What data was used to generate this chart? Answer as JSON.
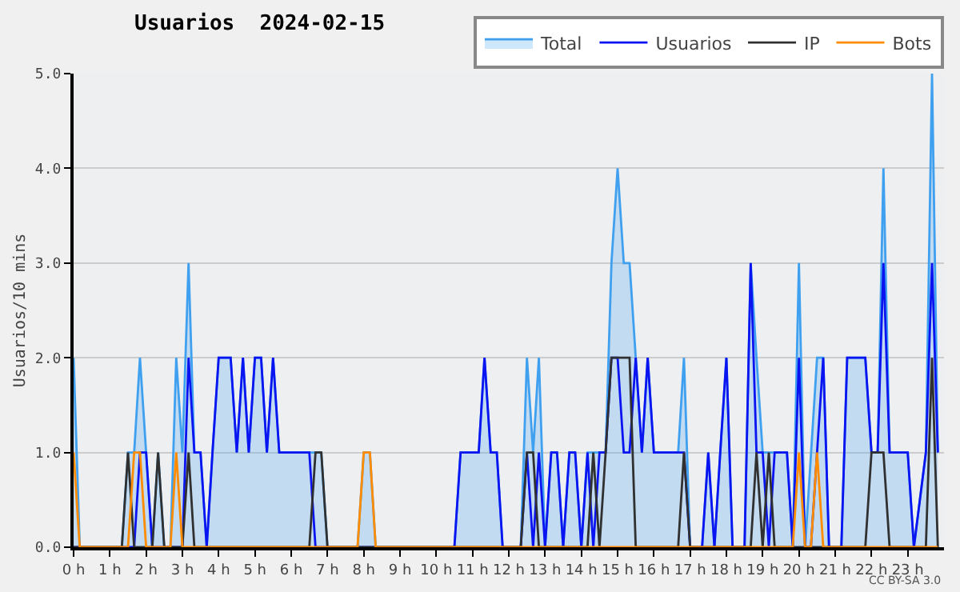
{
  "chart_data": {
    "type": "line",
    "title": "Usuarios  2024-02-15",
    "ylabel": "Usuarios/10 mins",
    "xlim": [
      0,
      24
    ],
    "ylim": [
      0,
      5
    ],
    "xticks": [
      {
        "value": 0,
        "label": "0 h"
      },
      {
        "value": 1,
        "label": "1 h"
      },
      {
        "value": 2,
        "label": "2 h"
      },
      {
        "value": 3,
        "label": "3 h"
      },
      {
        "value": 4,
        "label": "4 h"
      },
      {
        "value": 5,
        "label": "5 h"
      },
      {
        "value": 6,
        "label": "6 h"
      },
      {
        "value": 7,
        "label": "7 h"
      },
      {
        "value": 8,
        "label": "8 h"
      },
      {
        "value": 9,
        "label": "9 h"
      },
      {
        "value": 10,
        "label": "10 h"
      },
      {
        "value": 11,
        "label": "11 h"
      },
      {
        "value": 12,
        "label": "12 h"
      },
      {
        "value": 13,
        "label": "13 h"
      },
      {
        "value": 14,
        "label": "14 h"
      },
      {
        "value": 15,
        "label": "15 h"
      },
      {
        "value": 16,
        "label": "16 h"
      },
      {
        "value": 17,
        "label": "17 h"
      },
      {
        "value": 18,
        "label": "18 h"
      },
      {
        "value": 19,
        "label": "19 h"
      },
      {
        "value": 20,
        "label": "20 h"
      },
      {
        "value": 21,
        "label": "21 h"
      },
      {
        "value": 22,
        "label": "22 h"
      },
      {
        "value": 23,
        "label": "23 h"
      }
    ],
    "yticks": [
      {
        "value": 0,
        "label": "0.0"
      },
      {
        "value": 1,
        "label": "1.0"
      },
      {
        "value": 2,
        "label": "2.0"
      },
      {
        "value": 3,
        "label": "3.0"
      },
      {
        "value": 4,
        "label": "4.0"
      },
      {
        "value": 5,
        "label": "5.0"
      }
    ],
    "grid": "y",
    "legend": "top right",
    "marker": "none",
    "line_style": "solid",
    "annotations": [
      "CC BY-SA 3.0"
    ],
    "series": [
      {
        "name": "Total",
        "type": "area",
        "color": "#3fa0f0",
        "x": [
          0,
          0.17,
          1.33,
          1.5,
          1.67,
          1.83,
          2,
          2.17,
          2.33,
          2.5,
          2.67,
          2.83,
          3,
          3.17,
          3.33,
          3.5,
          3.67,
          3.83,
          4,
          4.33,
          4.5,
          4.67,
          4.83,
          5,
          5.17,
          5.33,
          5.5,
          5.67,
          6.83,
          7,
          7.83,
          8,
          8.17,
          8.33,
          10.5,
          10.67,
          11.17,
          11.33,
          11.5,
          11.67,
          11.83,
          12.33,
          12.5,
          12.67,
          12.83,
          13,
          13.17,
          13.33,
          13.5,
          13.67,
          13.83,
          14,
          14.17,
          14.67,
          14.83,
          15,
          15.17,
          15.33,
          15.5,
          15.67,
          15.83,
          16,
          16.67,
          16.83,
          17,
          17.33,
          17.5,
          17.67,
          17.83,
          18,
          18.17,
          18.5,
          18.67,
          18.83,
          19,
          19.17,
          19.33,
          19.67,
          19.83,
          20,
          20.17,
          20.5,
          20.67,
          20.83,
          21.17,
          21.33,
          21.83,
          22,
          22.17,
          22.33,
          22.5,
          23,
          23.17,
          23.5,
          23.67,
          23.83
        ],
        "values": [
          2,
          0,
          0,
          1,
          1,
          2,
          1,
          0,
          1,
          0,
          0,
          2,
          1,
          3,
          1,
          1,
          0,
          1,
          2,
          2,
          1,
          2,
          1,
          2,
          2,
          1,
          2,
          1,
          1,
          0,
          0,
          1,
          1,
          0,
          0,
          1,
          1,
          2,
          1,
          1,
          0,
          0,
          2,
          1,
          2,
          0,
          1,
          1,
          0,
          1,
          1,
          0,
          1,
          1,
          3,
          4,
          3,
          3,
          2,
          1,
          2,
          1,
          1,
          2,
          0,
          0,
          1,
          0,
          1,
          2,
          0,
          0,
          3,
          2,
          1,
          1,
          1,
          1,
          0,
          3,
          0,
          2,
          2,
          0,
          0,
          2,
          2,
          1,
          1,
          4,
          1,
          1,
          0,
          1,
          5,
          1
        ]
      },
      {
        "name": "Usuarios",
        "color": "#0a14f0",
        "x": [
          0,
          1.67,
          1.83,
          2,
          2.17,
          3,
          3.17,
          3.33,
          3.5,
          3.67,
          3.83,
          4,
          4.33,
          4.5,
          4.67,
          4.83,
          5,
          5.17,
          5.33,
          5.5,
          5.67,
          6.5,
          6.67,
          10.5,
          10.67,
          11.17,
          11.33,
          11.5,
          11.67,
          11.83,
          12.33,
          12.5,
          12.67,
          12.83,
          13,
          13.17,
          13.33,
          13.5,
          13.67,
          13.83,
          14,
          14.17,
          14.33,
          14.5,
          14.67,
          14.83,
          15,
          15.17,
          15.33,
          15.5,
          15.67,
          15.83,
          16,
          16.83,
          17,
          17.33,
          17.5,
          17.67,
          17.83,
          18,
          18.17,
          18.5,
          18.67,
          18.83,
          19,
          19.17,
          19.33,
          19.67,
          19.83,
          20,
          20.17,
          20.33,
          20.5,
          20.67,
          20.83,
          21.17,
          21.33,
          21.83,
          22,
          22.17,
          22.33,
          22.5,
          23,
          23.17,
          23.5,
          23.67,
          23.83
        ],
        "values": [
          0,
          0,
          1,
          1,
          0,
          0,
          2,
          1,
          1,
          0,
          1,
          2,
          2,
          1,
          2,
          1,
          2,
          2,
          1,
          2,
          1,
          1,
          0,
          0,
          1,
          1,
          2,
          1,
          1,
          0,
          0,
          1,
          0,
          1,
          0,
          1,
          1,
          0,
          1,
          1,
          0,
          1,
          0,
          1,
          1,
          2,
          2,
          1,
          1,
          2,
          1,
          2,
          1,
          1,
          0,
          0,
          1,
          0,
          1,
          2,
          0,
          0,
          3,
          1,
          1,
          0,
          1,
          1,
          0,
          2,
          0,
          0,
          1,
          2,
          0,
          0,
          2,
          2,
          1,
          1,
          3,
          1,
          1,
          0,
          1,
          3,
          1
        ]
      },
      {
        "name": "IP",
        "color": "#303030",
        "x": [
          0,
          1.33,
          1.5,
          1.67,
          2.17,
          2.33,
          2.5,
          3,
          3.17,
          3.33,
          6.5,
          6.67,
          6.83,
          7,
          12.33,
          12.5,
          12.67,
          12.83,
          14.17,
          14.33,
          14.5,
          14.67,
          14.83,
          15.33,
          15.5,
          16.67,
          16.83,
          17,
          18.67,
          18.83,
          19,
          19.17,
          19.33,
          21.83,
          22,
          22.33,
          22.5,
          23.5,
          23.67,
          23.83
        ],
        "values": [
          0,
          0,
          1,
          0,
          0,
          1,
          0,
          0,
          1,
          0,
          0,
          1,
          1,
          0,
          0,
          1,
          1,
          0,
          0,
          1,
          0,
          1,
          2,
          2,
          0,
          0,
          1,
          0,
          0,
          1,
          0,
          1,
          0,
          0,
          1,
          1,
          0,
          0,
          2,
          0
        ]
      },
      {
        "name": "Bots",
        "color": "#ff8c00",
        "x": [
          0,
          0.17,
          1.5,
          1.67,
          1.83,
          2,
          2.67,
          2.83,
          3,
          7.83,
          8,
          8.17,
          8.33,
          19.83,
          20,
          20.17,
          20.33,
          20.5,
          20.67,
          23.83
        ],
        "values": [
          1,
          0,
          0,
          1,
          1,
          0,
          0,
          1,
          0,
          0,
          1,
          1,
          0,
          0,
          1,
          0,
          0,
          1,
          0,
          0
        ]
      }
    ]
  }
}
